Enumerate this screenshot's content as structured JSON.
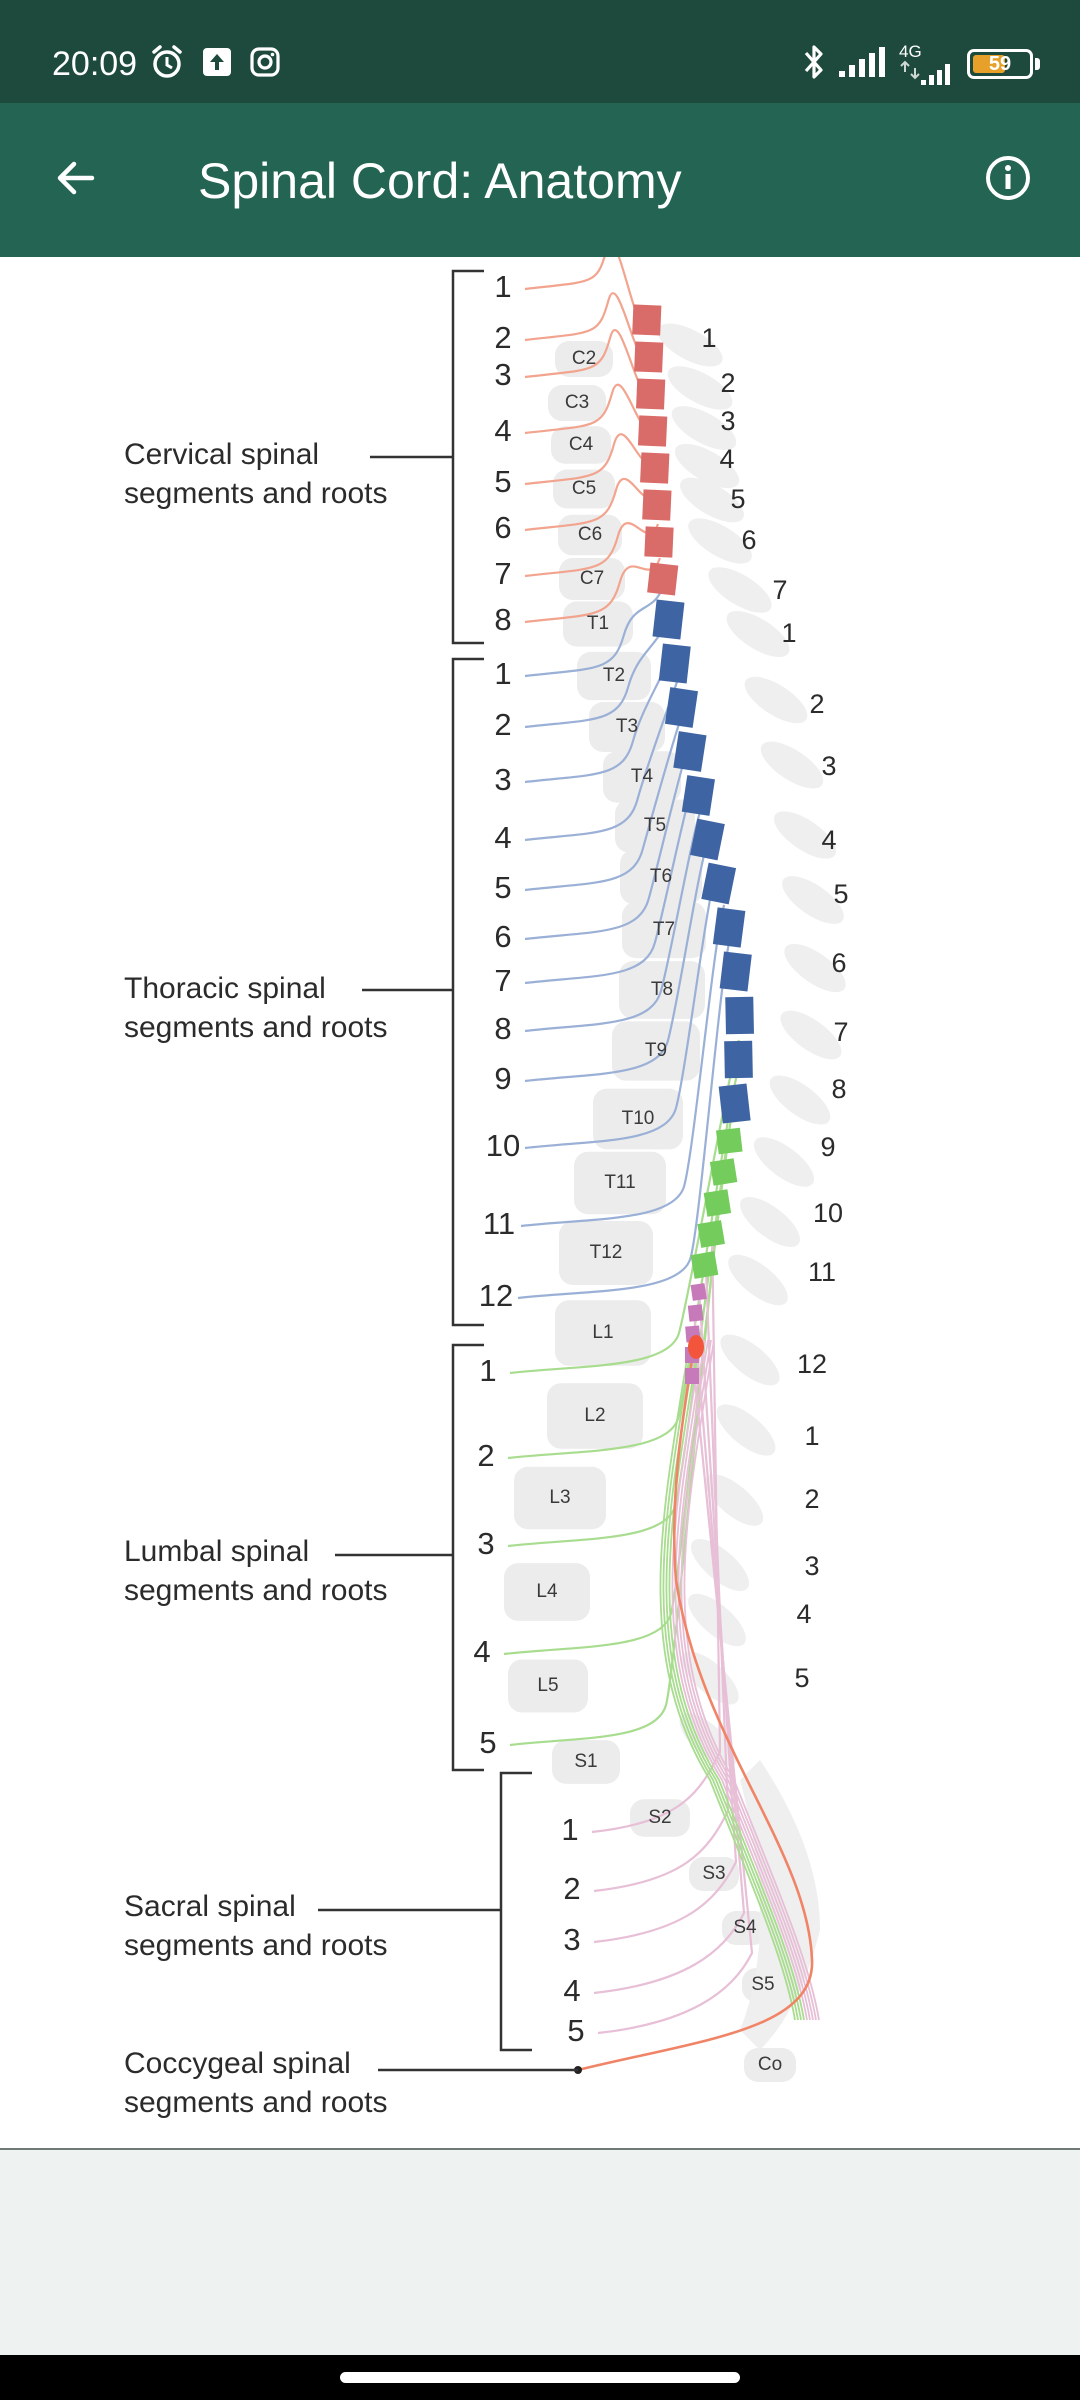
{
  "status_bar": {
    "time": "20:09",
    "network_label": "4G",
    "battery_level": "59",
    "battery_fraction": 0.59,
    "icons": [
      "alarm-icon",
      "upload-icon",
      "instagram-icon",
      "bluetooth-icon",
      "signal-icon",
      "signal-4g-icon",
      "battery-icon"
    ]
  },
  "app_bar": {
    "title": "Spinal Cord: Anatomy",
    "back_icon": "arrow-left-icon",
    "info_icon": "info-icon"
  },
  "figure": {
    "groups": [
      {
        "key": "cervical",
        "line1": "Cervical spinal",
        "line2": "segments and roots",
        "root_numbers": [
          "1",
          "2",
          "3",
          "4",
          "5",
          "6",
          "7",
          "8"
        ],
        "color": "#f2a48f",
        "segment_color": "#d96b68"
      },
      {
        "key": "thoracic",
        "line1": "Thoracic spinal",
        "line2": "segments and roots",
        "root_numbers": [
          "1",
          "2",
          "3",
          "4",
          "5",
          "6",
          "7",
          "8",
          "9",
          "10",
          "11",
          "12"
        ],
        "color": "#9bb0d6",
        "segment_color": "#3f64a3"
      },
      {
        "key": "lumbar",
        "line1": "Lumbal spinal",
        "line2": "segments and roots",
        "root_numbers": [
          "1",
          "2",
          "3",
          "4",
          "5"
        ],
        "color": "#a8dc8e",
        "segment_color": "#74cc5c"
      },
      {
        "key": "sacral",
        "line1": "Sacral spinal",
        "line2": "segments and roots",
        "root_numbers": [
          "1",
          "2",
          "3",
          "4",
          "5"
        ],
        "color": "#e7bfd6",
        "segment_color": "#c77ab9"
      },
      {
        "key": "coccygeal",
        "line1": "Coccygeal spinal",
        "line2": "segments and roots",
        "root_numbers": [],
        "color": "#f08467",
        "segment_color": "#f2553c"
      }
    ],
    "vertebra_labels": [
      "C2",
      "C3",
      "C4",
      "C5",
      "C6",
      "C7",
      "T1",
      "T2",
      "T3",
      "T4",
      "T5",
      "T6",
      "T7",
      "T8",
      "T9",
      "T10",
      "T11",
      "T12",
      "L1",
      "L2",
      "L3",
      "L4",
      "L5",
      "S1",
      "S2",
      "S3",
      "S4",
      "S5",
      "Co"
    ],
    "right_numbers": [
      "1",
      "2",
      "3",
      "4",
      "5",
      "6",
      "7",
      "1",
      "2",
      "3",
      "4",
      "5",
      "6",
      "7",
      "8",
      "9",
      "10",
      "11",
      "12",
      "1",
      "2",
      "3",
      "4",
      "5"
    ]
  }
}
